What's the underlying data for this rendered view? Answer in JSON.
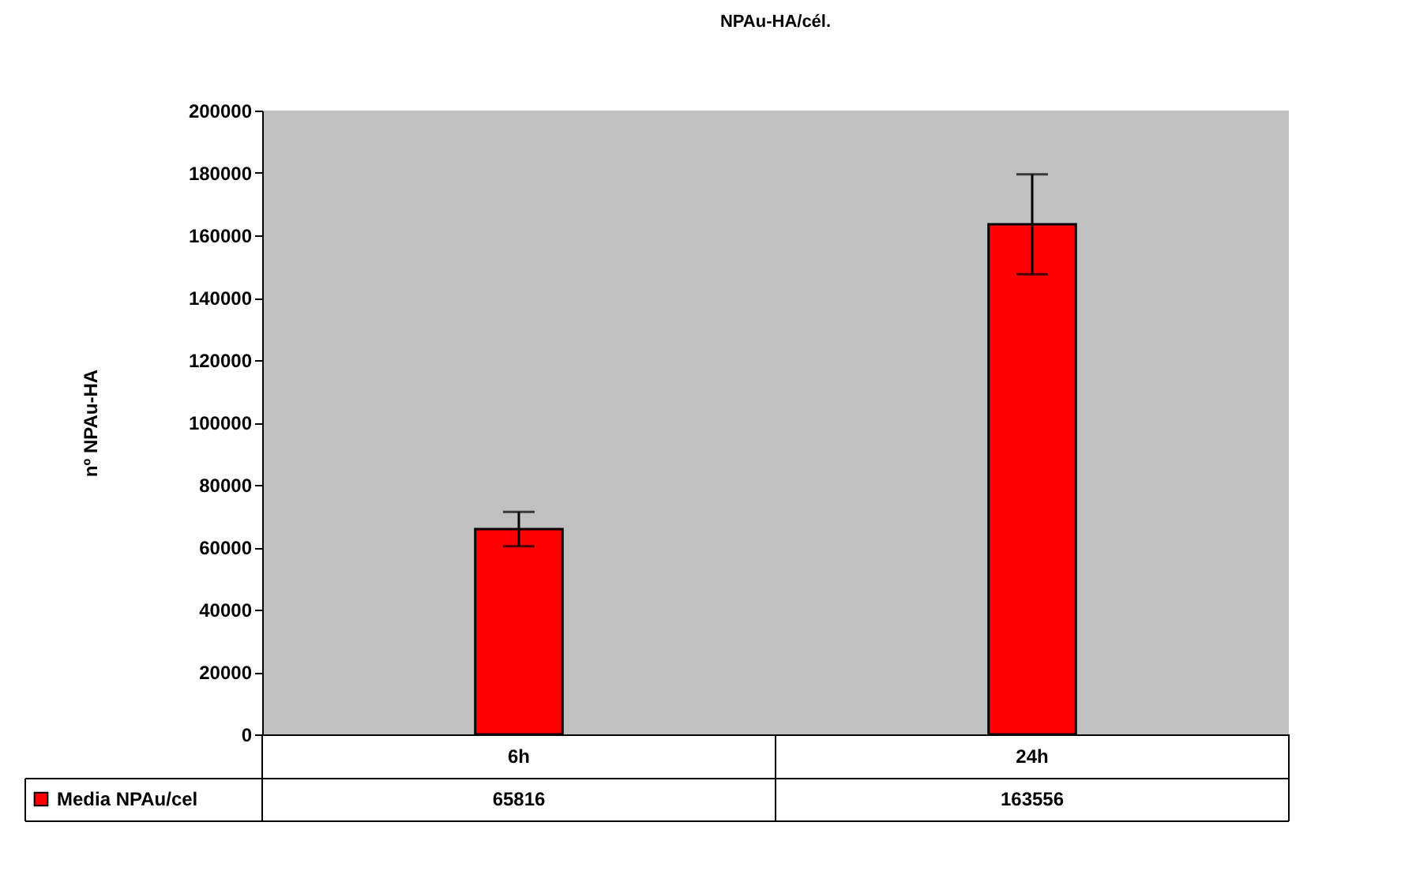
{
  "chart_data": {
    "type": "bar",
    "title": "NPAu-HA/cél.",
    "ylabel": "nº NPAu-HA",
    "categories": [
      "6h",
      "24h"
    ],
    "series": [
      {
        "name": "Media NPAu/cel",
        "color": "#ff0000",
        "values": [
          65816,
          163556
        ],
        "errors": [
          5500,
          16000
        ]
      }
    ],
    "ylim": [
      0,
      200000
    ],
    "yticks": [
      0,
      20000,
      40000,
      60000,
      80000,
      100000,
      120000,
      140000,
      160000,
      180000,
      200000
    ],
    "grid": false,
    "legend": "bottom",
    "data_labels": true
  }
}
